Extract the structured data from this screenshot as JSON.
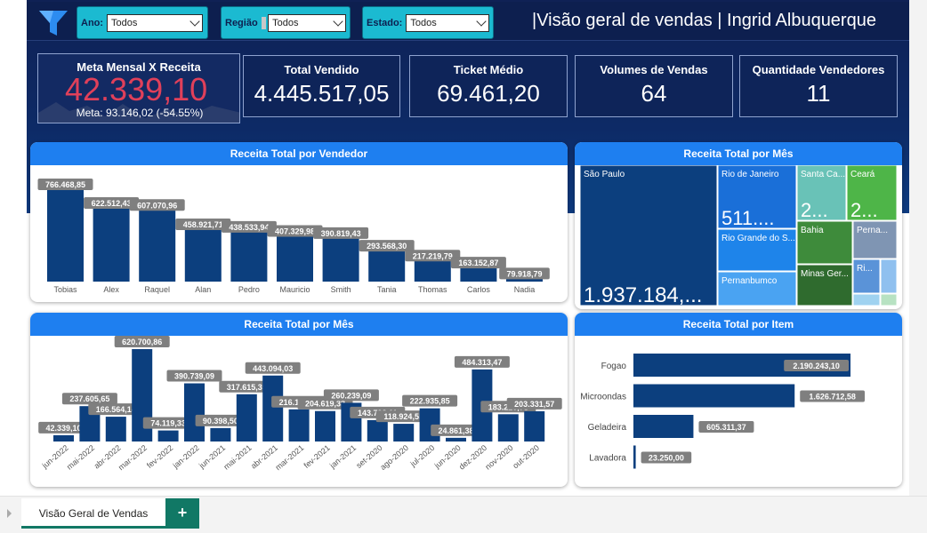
{
  "header": {
    "title": "|Visão geral de vendas | Ingrid Albuquerque",
    "filters": [
      {
        "label": "Ano:",
        "value": "Todos"
      },
      {
        "label": "Região",
        "value": "Todos"
      },
      {
        "label": "Estado:",
        "value": "Todos"
      }
    ]
  },
  "kpis": {
    "meta": {
      "title": "Meta Mensal X Receita",
      "value": "42.339,10",
      "sub": "Meta: 93.146,02 (-54.55%)"
    },
    "total_vendido": {
      "title": "Total Vendido",
      "value": "4.445.517,05"
    },
    "ticket_medio": {
      "title": "Ticket Médio",
      "value": "69.461,20"
    },
    "volumes": {
      "title": "Volumes de Vendas",
      "value": "64"
    },
    "vendedores": {
      "title": "Quantidade Vendedores",
      "value": "11"
    }
  },
  "panels": {
    "vendedor": "Receita Total por Vendedor",
    "mes_treemap": "Receita Total por Mês",
    "mes_bar": "Receita Total por Mês",
    "item": "Receita Total por Item"
  },
  "colors": {
    "bar": "#0c3f7e",
    "header": "#1e7ff0",
    "accent_red": "#e0405a",
    "label_bg": "#7f7f7f"
  },
  "chart_data": [
    {
      "type": "bar",
      "title": "Receita Total por Vendedor",
      "categories": [
        "Tobias",
        "Alex",
        "Raquel",
        "Alan",
        "Pedro",
        "Mauricio",
        "Smith",
        "Tania",
        "Thomas",
        "Carlos",
        "Nadia"
      ],
      "values": [
        766468.85,
        622512.43,
        607070.96,
        458921.71,
        438533.94,
        407329.98,
        390819.43,
        293568.3,
        217219.79,
        163152.87,
        79918.79
      ],
      "labels": [
        "766.468,85",
        "622.512,43",
        "607.070,96",
        "458.921,71",
        "438.533,94",
        "407.329,98",
        "390.819,43",
        "293.568,30",
        "217.219,79",
        "163.152,87",
        "79.918,79"
      ]
    },
    {
      "type": "treemap",
      "title": "Receita Total por Mês",
      "items": [
        {
          "name": "São Paulo",
          "value_label": "1.937.184,...",
          "color": "#0c3f7e"
        },
        {
          "name": "Rio de Janeiro",
          "value_label": "511....",
          "color": "#1a6fd8"
        },
        {
          "name": "Rio Grande do S...",
          "value_label": "",
          "color": "#1e84ea"
        },
        {
          "name": "Pernanbumco",
          "value_label": "",
          "color": "#4aa3f2"
        },
        {
          "name": "Santa Ca...",
          "value_label": "2...",
          "color": "#69c2b7"
        },
        {
          "name": "Ceará",
          "value_label": "2...",
          "color": "#4eb548"
        },
        {
          "name": "Bahia",
          "value_label": "",
          "color": "#3e8b3b"
        },
        {
          "name": "Minas Ger...",
          "value_label": "",
          "color": "#2f6b2e"
        },
        {
          "name": "Perna...",
          "value_label": "",
          "color": "#7f95b3"
        },
        {
          "name": "Ri...",
          "value_label": "",
          "color": "#5a93d8"
        }
      ]
    },
    {
      "type": "bar",
      "title": "Receita Total por Mês",
      "categories": [
        "jun-2022",
        "mai-2022",
        "abr-2022",
        "mar-2022",
        "fev-2022",
        "jan-2022",
        "jun-2021",
        "mai-2021",
        "abr-2021",
        "mar-2021",
        "fev-2021",
        "jan-2021",
        "set-2020",
        "ago-2020",
        "jul-2020",
        "jun-2020",
        "dez-2020",
        "nov-2020",
        "out-2020"
      ],
      "values": [
        42339.1,
        237605.65,
        166564.14,
        620700.86,
        74119.33,
        390739.09,
        90398.5,
        317615.35,
        443094.03,
        216101.87,
        204619.33,
        260239.09,
        143793.11,
        118924.55,
        222935.85,
        24861.38,
        484313.47,
        183220.78,
        203331.57
      ],
      "labels": [
        "42.339,10",
        "237.605,65",
        "166.564,14",
        "620.700,86",
        "74.119,33",
        "390.739,09",
        "90.398,50",
        "317.615,35",
        "443.094,03",
        "216.101,87",
        "204.619,33",
        "260.239,09",
        "143.793,11",
        "118.924,55",
        "222.935,85",
        "24.861,38",
        "484.313,47",
        "183.220,78",
        "203.331,57"
      ]
    },
    {
      "type": "bar",
      "orientation": "horizontal",
      "title": "Receita Total por Item",
      "categories": [
        "Fogao",
        "Microondas",
        "Geladeira",
        "Lavadora"
      ],
      "values": [
        2190243.1,
        1626712.58,
        605311.37,
        23250.0
      ],
      "labels": [
        "2.190.243,10",
        "1.626.712,58",
        "605.311,37",
        "23.250,00"
      ]
    }
  ],
  "tabs": {
    "active": "Visão Geral de Vendas",
    "add_label": "+"
  }
}
